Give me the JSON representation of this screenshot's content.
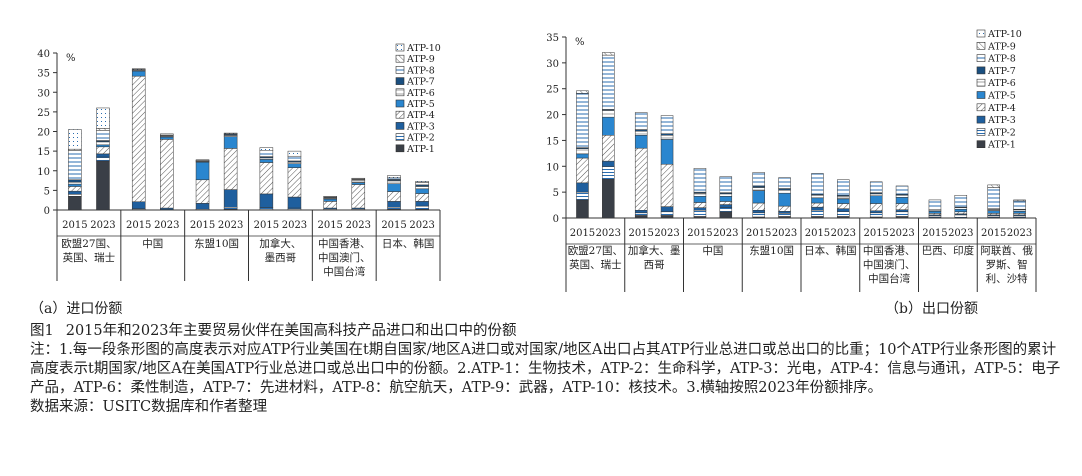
{
  "legend_a": [
    "ATP-10",
    "ATP-9",
    "ATP-8",
    "ATP-7",
    "ATP-6",
    "ATP-5",
    "ATP-4",
    "ATP-3",
    "ATP-2",
    "ATP-1"
  ],
  "legend_b": [
    "ATP-10",
    "ATP-9",
    "ATP-8",
    "ATP-7",
    "ATP-6",
    "ATP-5",
    "ATP-4",
    "ATP-3",
    "ATP-2",
    "ATP-1"
  ],
  "unit": "%",
  "caption": {
    "sub_a": "（a）进口份额",
    "sub_b": "（b）出口份额",
    "fig_no": "图1",
    "fig_title": "2015年和2023年主要贸易伙伴在美国高科技产品进口和出口中的份额",
    "note": "注：1.每一段条形图的高度表示对应ATP行业美国在t期自国家/地区A进口或对国家/地区A出口占其ATP行业总进口或总出口的比重；10个ATP行业条形图的累计高度表示t期国家/地区A在美国ATP行业总进口或总出口中的份额。2.ATP-1：生物技术，ATP-2：生命科学，ATP-3：光电，ATP-4：信息与通讯，ATP-5：电子产品，ATP-6：柔性制造，ATP-7：先进材料，ATP-8：航空航天，ATP-9：武器，ATP-10：核技术。3.横轴按照2023年份额排序。",
    "source": "数据来源：USITC数据库和作者整理"
  },
  "colors": {
    "ATP-1": "#3a3f47",
    "ATP-2": "#ffffff",
    "ATP-3": "#1f5f9e",
    "ATP-4": "#ffffff",
    "ATP-5": "#2a86cf",
    "ATP-6": "#ffffff",
    "ATP-7": "#1a4f80",
    "ATP-8": "#ffffff",
    "ATP-9": "#ffffff",
    "ATP-10": "#ffffff",
    "axis": "#333333"
  },
  "chart_data": [
    {
      "type": "bar",
      "stacked": true,
      "title": "进口份额",
      "ylabel": "%",
      "ylim": [
        0,
        40
      ],
      "yticks": [
        0,
        5,
        10,
        15,
        20,
        25,
        30,
        35,
        40
      ],
      "years": [
        "2015",
        "2023"
      ],
      "groups": [
        "欧盟27国、英国、瑞士",
        "中国",
        "东盟10国",
        "加拿大、墨西哥",
        "中国香港、中国澳门、中国台湾",
        "日本、韩国"
      ],
      "group_lines": [
        [
          "欧盟27国、",
          "英国、瑞士"
        ],
        [
          "中国"
        ],
        [
          "东盟10国"
        ],
        [
          "加拿大、",
          "墨西哥"
        ],
        [
          "中国香港、",
          "中国澳门、",
          "中国台湾"
        ],
        [
          "日本、韩国"
        ]
      ],
      "series_names": [
        "ATP-1",
        "ATP-2",
        "ATP-3",
        "ATP-4",
        "ATP-5",
        "ATP-6",
        "ATP-7",
        "ATP-8",
        "ATP-9",
        "ATP-10"
      ],
      "stacks": [
        [
          3.5,
          0.5,
          0.8,
          1.2,
          0.6,
          0.5,
          0.6,
          7.5,
          0.3,
          5.0
        ],
        [
          12.5,
          1.0,
          0.8,
          1.8,
          0.5,
          0.8,
          0.3,
          2.6,
          0.5,
          5.2
        ],
        [
          0.1,
          0.2,
          1.8,
          32.0,
          1.3,
          0.2,
          0.1,
          0.1,
          0.0,
          0.2
        ],
        [
          0.0,
          0.1,
          0.4,
          17.5,
          0.6,
          0.2,
          0.1,
          0.2,
          0.0,
          0.3
        ],
        [
          0.0,
          0.2,
          1.5,
          6.0,
          4.5,
          0.2,
          0.1,
          0.1,
          0.0,
          0.2
        ],
        [
          0.2,
          0.5,
          4.5,
          10.5,
          3.0,
          0.3,
          0.2,
          0.2,
          0.0,
          0.2
        ],
        [
          0.1,
          0.5,
          3.5,
          8.0,
          0.8,
          0.4,
          0.3,
          1.5,
          0.0,
          0.8
        ],
        [
          0.1,
          0.4,
          2.8,
          7.5,
          1.0,
          0.4,
          0.3,
          1.2,
          0.0,
          1.3
        ],
        [
          0.0,
          0.2,
          0.3,
          1.7,
          0.6,
          0.2,
          0.1,
          0.2,
          0.0,
          0.2
        ],
        [
          0.0,
          0.2,
          0.3,
          6.0,
          0.5,
          0.6,
          0.1,
          0.2,
          0.0,
          0.2
        ],
        [
          0.2,
          0.5,
          1.5,
          2.5,
          2.0,
          0.8,
          0.3,
          0.4,
          0.0,
          0.6
        ],
        [
          0.2,
          0.8,
          1.2,
          2.0,
          1.2,
          0.6,
          0.4,
          0.6,
          0.0,
          0.3
        ]
      ]
    },
    {
      "type": "bar",
      "stacked": true,
      "title": "出口份额",
      "ylabel": "%",
      "ylim": [
        0,
        35
      ],
      "yticks": [
        0,
        5,
        10,
        15,
        20,
        25,
        30,
        35
      ],
      "years": [
        "2015",
        "2023"
      ],
      "groups": [
        "欧盟27国、英国、瑞士",
        "加拿大、墨西哥",
        "中国",
        "东盟10国",
        "日本、韩国",
        "中国香港、中国澳门、中国台湾",
        "巴西、印度",
        "阿联酋、俄罗斯、智利、沙特"
      ],
      "group_lines": [
        [
          "欧盟27国、",
          "英国、瑞士"
        ],
        [
          "加拿大、墨",
          "西哥"
        ],
        [
          "中国"
        ],
        [
          "东盟10国"
        ],
        [
          "日本、韩国"
        ],
        [
          "中国香港、",
          "中国澳门、",
          "中国台湾"
        ],
        [
          "巴西、印度"
        ],
        [
          "阿联酋、俄",
          "罗斯、智",
          "利、沙特"
        ]
      ],
      "series_names": [
        "ATP-1",
        "ATP-2",
        "ATP-3",
        "ATP-4",
        "ATP-5",
        "ATP-6",
        "ATP-7",
        "ATP-8",
        "ATP-9",
        "ATP-10"
      ],
      "stacks": [
        [
          3.5,
          1.5,
          1.8,
          4.8,
          0.8,
          1.0,
          0.2,
          10.5,
          0.5,
          0.0
        ],
        [
          7.5,
          2.5,
          1.0,
          5.0,
          3.5,
          1.3,
          0.2,
          10.5,
          0.5,
          0.0
        ],
        [
          0.5,
          0.5,
          0.5,
          12.0,
          2.5,
          0.8,
          0.3,
          3.3,
          0.0,
          0.0
        ],
        [
          0.5,
          0.7,
          1.0,
          8.2,
          4.8,
          0.8,
          0.3,
          3.5,
          0.0,
          0.0
        ],
        [
          0.3,
          1.2,
          0.5,
          1.0,
          1.2,
          0.6,
          0.2,
          4.6,
          0.0,
          0.0
        ],
        [
          1.2,
          0.8,
          0.6,
          0.6,
          1.0,
          0.5,
          0.2,
          3.1,
          0.0,
          0.0
        ],
        [
          0.2,
          0.8,
          0.5,
          1.4,
          2.4,
          0.6,
          0.3,
          2.6,
          0.0,
          0.0
        ],
        [
          0.3,
          0.6,
          0.4,
          1.0,
          2.5,
          0.6,
          0.3,
          2.1,
          0.0,
          0.0
        ],
        [
          0.3,
          1.2,
          0.6,
          0.8,
          1.0,
          0.5,
          0.2,
          4.0,
          0.0,
          0.0
        ],
        [
          0.3,
          1.0,
          0.5,
          1.0,
          0.9,
          0.5,
          0.2,
          3.0,
          0.0,
          0.0
        ],
        [
          0.2,
          0.8,
          0.4,
          1.4,
          1.5,
          0.4,
          0.2,
          2.1,
          0.0,
          0.0
        ],
        [
          0.3,
          0.9,
          0.4,
          1.2,
          1.2,
          0.4,
          0.2,
          1.6,
          0.0,
          0.0
        ],
        [
          0.1,
          0.3,
          0.2,
          0.3,
          0.4,
          0.2,
          0.1,
          1.9,
          0.0,
          0.0
        ],
        [
          0.1,
          0.5,
          0.2,
          0.4,
          0.5,
          0.3,
          0.1,
          2.3,
          0.0,
          0.0
        ],
        [
          0.1,
          0.3,
          0.2,
          0.3,
          0.5,
          0.3,
          0.1,
          4.1,
          0.5,
          0.0
        ],
        [
          0.1,
          0.3,
          0.2,
          0.3,
          0.4,
          0.3,
          0.1,
          1.6,
          0.2,
          0.0
        ]
      ]
    }
  ]
}
